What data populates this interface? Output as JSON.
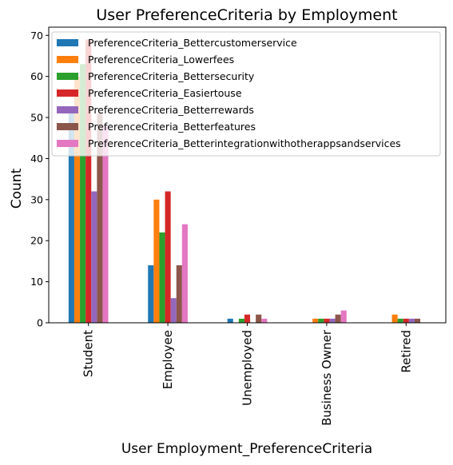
{
  "chart_data": {
    "type": "bar",
    "title": "User PreferenceCriteria by Employment",
    "xlabel": "User Employment_PreferenceCriteria",
    "ylabel": "Count",
    "ylim": [
      0,
      72
    ],
    "yticks": [
      0,
      10,
      20,
      30,
      40,
      50,
      60,
      70
    ],
    "grid": false,
    "legend_position": "top-left",
    "categories": [
      "Student",
      "Employee",
      "Unemployed",
      "Business Owner",
      "Retired"
    ],
    "series": [
      {
        "name": "PreferenceCriteria_Bettercustomerservice",
        "color": "#1f77b4",
        "values": [
          51,
          14,
          1,
          0,
          0
        ]
      },
      {
        "name": "PreferenceCriteria_Lowerfees",
        "color": "#ff7f0e",
        "values": [
          60,
          30,
          0,
          1,
          2
        ]
      },
      {
        "name": "PreferenceCriteria_Bettersecurity",
        "color": "#2ca02c",
        "values": [
          63,
          22,
          1,
          1,
          1
        ]
      },
      {
        "name": "PreferenceCriteria_Easiertouse",
        "color": "#d62728",
        "values": [
          69,
          32,
          2,
          1,
          1
        ]
      },
      {
        "name": "PreferenceCriteria_Betterrewards",
        "color": "#9467bd",
        "values": [
          32,
          6,
          0,
          1,
          1
        ]
      },
      {
        "name": "PreferenceCriteria_Betterfeatures",
        "color": "#8c564b",
        "values": [
          51,
          14,
          2,
          2,
          1
        ]
      },
      {
        "name": "PreferenceCriteria_Betterintegrationwithotherappsandservices",
        "color": "#e377c2",
        "values": [
          48,
          24,
          1,
          3,
          0
        ]
      }
    ]
  }
}
